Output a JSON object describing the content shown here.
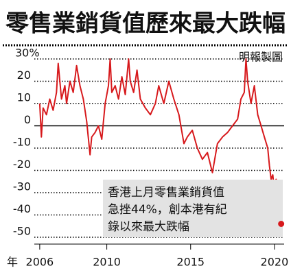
{
  "chart_data": {
    "type": "line",
    "title": "零售業銷貨值歷來最大跌幅",
    "source": "明報製圖",
    "xlabel": "年",
    "annotation": [
      "香港上月零售業銷貨值",
      "急挫44%，創本港有紀",
      "錄以來最大跌幅"
    ],
    "x": [
      2006.0,
      2006.1,
      2006.2,
      2006.4,
      2006.6,
      2006.8,
      2007.0,
      2007.1,
      2007.3,
      2007.5,
      2007.6,
      2007.8,
      2008.0,
      2008.2,
      2008.4,
      2008.6,
      2008.8,
      2009.0,
      2009.1,
      2009.3,
      2009.5,
      2009.7,
      2009.9,
      2010.1,
      2010.2,
      2010.3,
      2010.5,
      2010.7,
      2010.9,
      2011.1,
      2011.3,
      2011.4,
      2011.6,
      2011.8,
      2012.0,
      2012.3,
      2012.6,
      2012.9,
      2013.1,
      2013.4,
      2013.7,
      2014.0,
      2014.3,
      2014.6,
      2014.8,
      2015.1,
      2015.4,
      2015.7,
      2016.0,
      2016.3,
      2016.6,
      2016.9,
      2017.2,
      2017.5,
      2017.8,
      2018.0,
      2018.2,
      2018.3,
      2018.4,
      2018.6,
      2018.8,
      2019.0,
      2019.2,
      2019.4,
      2019.6,
      2019.7,
      2019.8,
      2019.9,
      2020.0,
      2020.1,
      2020.2,
      2020.3,
      2020.4
    ],
    "values": [
      10,
      -5,
      8,
      5,
      12,
      7,
      15,
      28,
      12,
      18,
      10,
      20,
      15,
      27,
      18,
      12,
      2,
      -13,
      -5,
      -3,
      0,
      -6,
      10,
      18,
      30,
      15,
      18,
      12,
      22,
      14,
      30,
      20,
      15,
      25,
      12,
      8,
      5,
      10,
      18,
      10,
      20,
      12,
      5,
      -8,
      -5,
      -2,
      -10,
      -15,
      -12,
      -21,
      -8,
      -5,
      -3,
      0,
      3,
      12,
      15,
      30,
      20,
      10,
      18,
      5,
      0,
      -5,
      -10,
      -18,
      -24,
      -22,
      -30,
      -24,
      -32,
      -28,
      -44
    ],
    "color": "#d7191c",
    "xlim": [
      2005.8,
      2020.7
    ],
    "xticks": [
      2006,
      2010,
      2015,
      2020
    ],
    "ylim": [
      -52,
      33
    ],
    "yticks": [
      {
        "value": 30,
        "label": "30%"
      },
      20,
      10,
      0,
      -10,
      -20,
      -30,
      -40,
      -50
    ],
    "grid": true
  }
}
